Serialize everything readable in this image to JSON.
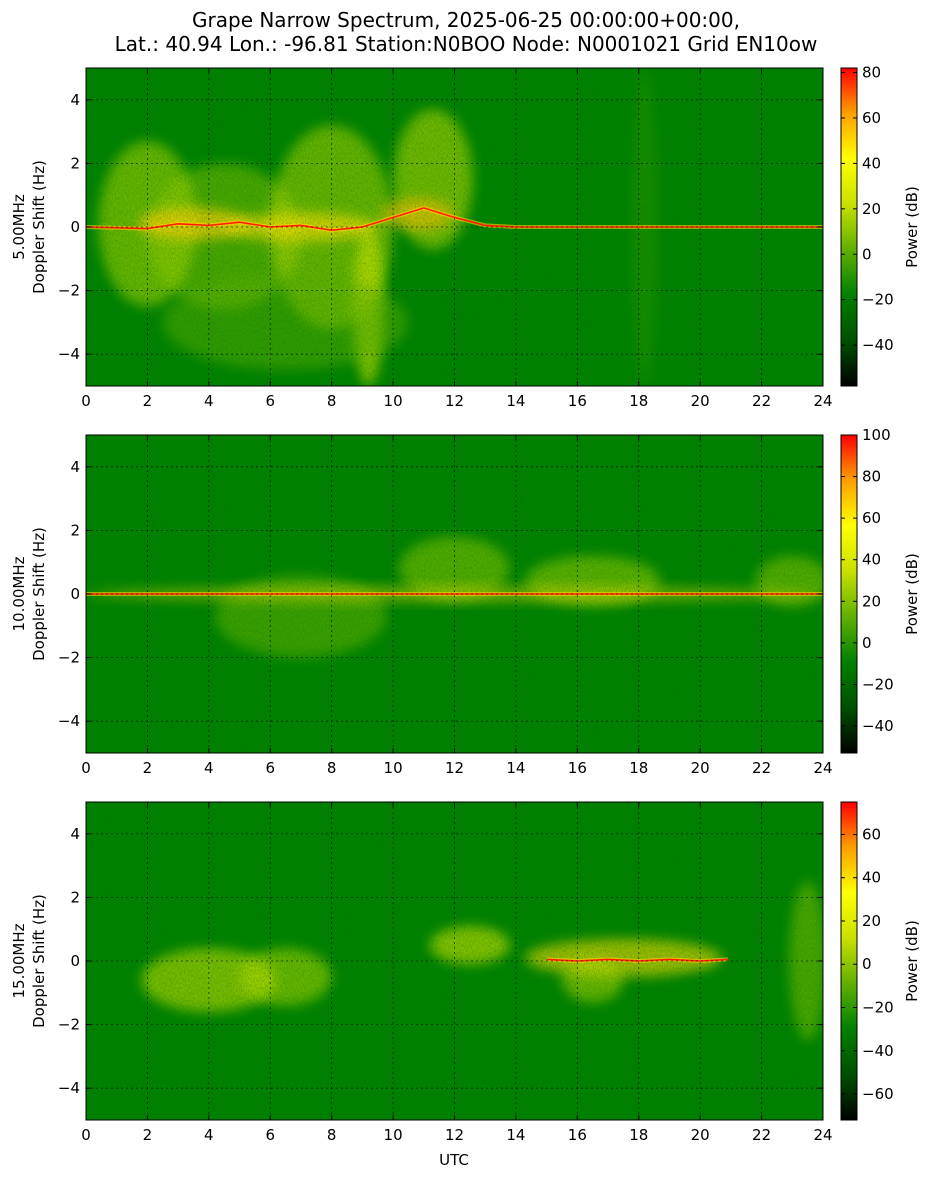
{
  "page": {
    "title_line1": "Grape Narrow Spectrum, 2025-06-25 00:00:00+00:00,",
    "title_line2": "Lat.: 40.94 Lon.: -96.81 Station:N0BOO Node: N0001021 Grid EN10ow"
  },
  "colormap": [
    "#000000",
    "#005000",
    "#008000",
    "#60b000",
    "#c8e000",
    "#ffff00",
    "#ffa000",
    "#ff0000"
  ],
  "chart_data": [
    {
      "type": "heatmap",
      "ylabel_line1": "5.00MHz",
      "ylabel_line2": "Doppler Shift (Hz)",
      "xlabel": "",
      "xlim": [
        0,
        24
      ],
      "ylim": [
        -5,
        5
      ],
      "x_ticks": [
        0,
        2,
        4,
        6,
        8,
        10,
        12,
        14,
        16,
        18,
        20,
        22,
        24
      ],
      "y_ticks": [
        4,
        2,
        0,
        -2,
        -4
      ],
      "grid": true,
      "colorbar": {
        "label": "Power (dB)",
        "range": [
          -58,
          82
        ],
        "ticks": [
          80,
          60,
          40,
          20,
          0,
          -20,
          -40
        ]
      },
      "carrier_trace": [
        [
          0,
          0
        ],
        [
          2,
          -0.05
        ],
        [
          3,
          0.1
        ],
        [
          4,
          0.05
        ],
        [
          5,
          0.15
        ],
        [
          6,
          0.0
        ],
        [
          7,
          0.05
        ],
        [
          8,
          -0.1
        ],
        [
          9,
          0.0
        ],
        [
          10,
          0.3
        ],
        [
          11,
          0.6
        ],
        [
          12,
          0.3
        ],
        [
          13,
          0.05
        ],
        [
          14,
          0
        ],
        [
          24,
          0
        ]
      ]
    },
    {
      "type": "heatmap",
      "ylabel_line1": "10.00MHz",
      "ylabel_line2": "Doppler Shift (Hz)",
      "xlabel": "",
      "xlim": [
        0,
        24
      ],
      "ylim": [
        -5,
        5
      ],
      "x_ticks": [
        0,
        2,
        4,
        6,
        8,
        10,
        12,
        14,
        16,
        18,
        20,
        22,
        24
      ],
      "y_ticks": [
        4,
        2,
        0,
        -2,
        -4
      ],
      "grid": true,
      "colorbar": {
        "label": "Power (dB)",
        "range": [
          -53,
          100
        ],
        "ticks": [
          100,
          80,
          60,
          40,
          20,
          0,
          -20,
          -40
        ]
      },
      "carrier_trace": [
        [
          0,
          0
        ],
        [
          24,
          0
        ]
      ]
    },
    {
      "type": "heatmap",
      "ylabel_line1": "15.00MHz",
      "ylabel_line2": "Doppler Shift (Hz)",
      "xlabel": "UTC",
      "xlim": [
        0,
        24
      ],
      "ylim": [
        -5,
        5
      ],
      "x_ticks": [
        0,
        2,
        4,
        6,
        8,
        10,
        12,
        14,
        16,
        18,
        20,
        22,
        24
      ],
      "y_ticks": [
        4,
        2,
        0,
        -2,
        -4
      ],
      "grid": true,
      "colorbar": {
        "label": "Power (dB)",
        "range": [
          -72,
          75
        ],
        "ticks": [
          60,
          40,
          20,
          0,
          -20,
          -40,
          -60
        ]
      },
      "carrier_trace": [
        [
          15,
          0.05
        ],
        [
          16,
          0.0
        ],
        [
          17,
          0.05
        ],
        [
          18,
          0.0
        ],
        [
          19,
          0.05
        ],
        [
          20,
          0.0
        ],
        [
          20.9,
          0.05
        ]
      ]
    }
  ]
}
